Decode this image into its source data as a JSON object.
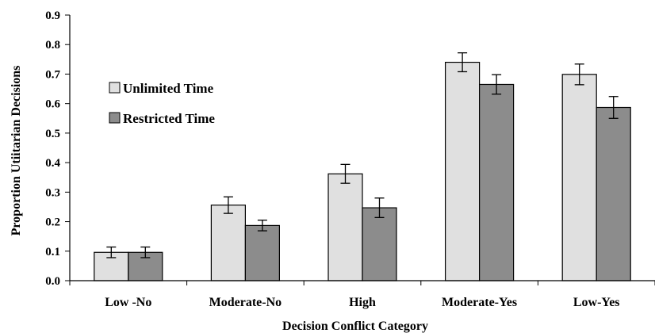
{
  "chart_data": {
    "type": "bar",
    "xlabel": "Decision Conflict Category",
    "ylabel": "Proportion Utiitarian Decisions",
    "ylim": [
      0,
      0.9
    ],
    "yticks": [
      "0.0",
      "0.1",
      "0.2",
      "0.3",
      "0.4",
      "0.5",
      "0.6",
      "0.7",
      "0.8",
      "0.9"
    ],
    "categories": [
      "Low -No",
      "Moderate-No",
      "High",
      "Moderate-Yes",
      "Low-Yes"
    ],
    "grid": false,
    "legend_position": "top-left",
    "error_bars": true,
    "series": [
      {
        "name": "Unlimited Time",
        "color": "#e0e0e0",
        "values": [
          0.096,
          0.256,
          0.362,
          0.74,
          0.699
        ],
        "errors": [
          0.018,
          0.028,
          0.032,
          0.032,
          0.035
        ]
      },
      {
        "name": "Restricted Time",
        "color": "#8c8c8c",
        "values": [
          0.096,
          0.187,
          0.247,
          0.665,
          0.587
        ],
        "errors": [
          0.018,
          0.018,
          0.033,
          0.033,
          0.037
        ]
      }
    ]
  }
}
